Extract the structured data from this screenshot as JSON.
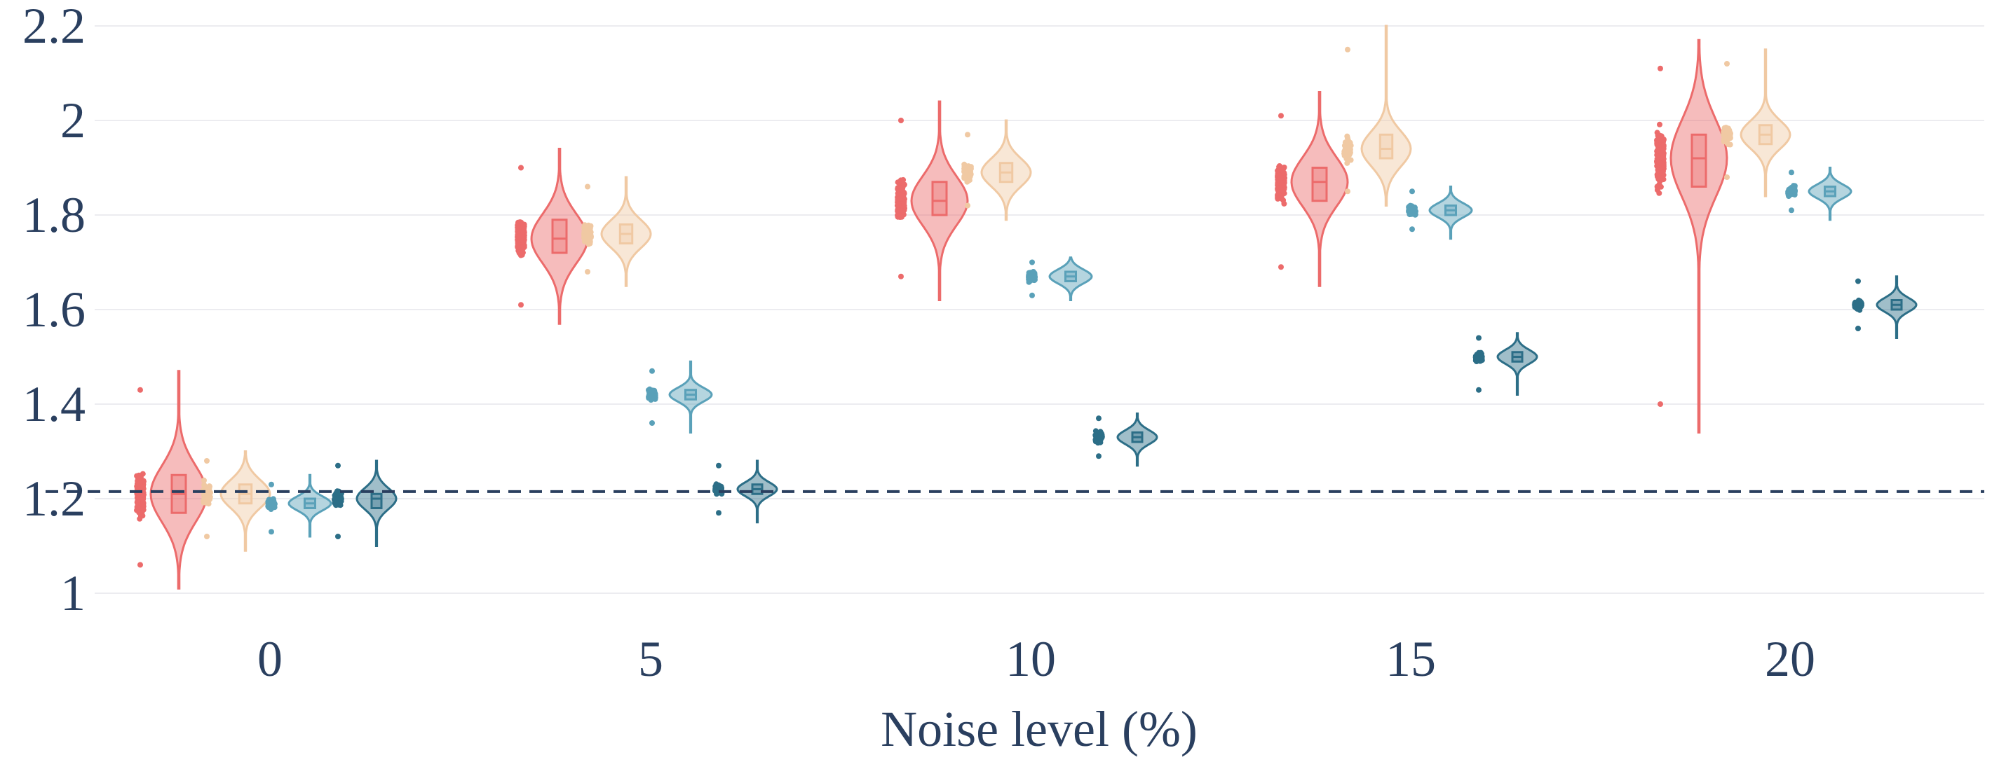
{
  "chart_data": {
    "type": "violin",
    "title": "",
    "xlabel": "Noise level (%)",
    "ylabel": "",
    "categories": [
      "0",
      "5",
      "10",
      "15",
      "20"
    ],
    "y_ticks": [
      "1",
      "1.2",
      "1.4",
      "1.6",
      "1.8",
      "2",
      "2.2"
    ],
    "ylim": [
      0.95,
      2.22
    ],
    "grid": "horizontal",
    "legend": "none",
    "reference_line": {
      "y": 1.215,
      "style": "dashed",
      "color": "#2a3f5f"
    },
    "series": [
      {
        "color": "#ec6b6b",
        "groups": [
          {
            "x": "0",
            "q1": 1.17,
            "median": 1.21,
            "q3": 1.25,
            "min": 1.01,
            "max": 1.47,
            "pts_min": 1.06,
            "pts_max": 1.43,
            "pts_core": [
              1.09,
              1.36
            ]
          },
          {
            "x": "5",
            "q1": 1.72,
            "median": 1.75,
            "q3": 1.79,
            "min": 1.57,
            "max": 1.94,
            "pts_min": 1.61,
            "pts_max": 1.9,
            "pts_core": [
              1.62,
              1.87
            ]
          },
          {
            "x": "10",
            "q1": 1.8,
            "median": 1.83,
            "q3": 1.87,
            "min": 1.62,
            "max": 2.04,
            "pts_min": 1.67,
            "pts_max": 2.0,
            "pts_core": [
              1.7,
              1.96
            ]
          },
          {
            "x": "15",
            "q1": 1.83,
            "median": 1.87,
            "q3": 1.9,
            "min": 1.65,
            "max": 2.06,
            "pts_min": 1.69,
            "pts_max": 2.01,
            "pts_core": [
              1.71,
              2.0
            ]
          },
          {
            "x": "20",
            "q1": 1.86,
            "median": 1.92,
            "q3": 1.97,
            "min": 1.34,
            "max": 2.17,
            "pts_min": 1.4,
            "pts_max": 2.11,
            "pts_core": [
              1.65,
              2.1
            ]
          }
        ]
      },
      {
        "color": "#f0c9a3",
        "groups": [
          {
            "x": "0",
            "q1": 1.19,
            "median": 1.21,
            "q3": 1.23,
            "min": 1.09,
            "max": 1.3,
            "pts_min": 1.12,
            "pts_max": 1.28,
            "pts_core": [
              1.14,
              1.27
            ]
          },
          {
            "x": "5",
            "q1": 1.74,
            "median": 1.76,
            "q3": 1.78,
            "min": 1.65,
            "max": 1.88,
            "pts_min": 1.68,
            "pts_max": 1.86,
            "pts_core": [
              1.7,
              1.84
            ]
          },
          {
            "x": "10",
            "q1": 1.87,
            "median": 1.89,
            "q3": 1.91,
            "min": 1.79,
            "max": 2.0,
            "pts_min": 1.82,
            "pts_max": 1.97,
            "pts_core": [
              1.83,
              1.96
            ]
          },
          {
            "x": "15",
            "q1": 1.92,
            "median": 1.94,
            "q3": 1.97,
            "min": 1.82,
            "max": 2.2,
            "pts_min": 1.85,
            "pts_max": 2.15,
            "pts_core": [
              1.86,
              2.04
            ]
          },
          {
            "x": "20",
            "q1": 1.95,
            "median": 1.97,
            "q3": 1.99,
            "min": 1.84,
            "max": 2.15,
            "pts_min": 1.88,
            "pts_max": 2.12,
            "pts_core": [
              1.89,
              2.07
            ]
          }
        ]
      },
      {
        "color": "#5aa1b9",
        "groups": [
          {
            "x": "0",
            "q1": 1.18,
            "median": 1.19,
            "q3": 1.2,
            "min": 1.12,
            "max": 1.25,
            "pts_min": 1.13,
            "pts_max": 1.23,
            "pts_core": [
              1.15,
              1.22
            ]
          },
          {
            "x": "5",
            "q1": 1.41,
            "median": 1.42,
            "q3": 1.43,
            "min": 1.34,
            "max": 1.49,
            "pts_min": 1.36,
            "pts_max": 1.47,
            "pts_core": [
              1.37,
              1.46
            ]
          },
          {
            "x": "10",
            "q1": 1.66,
            "median": 1.67,
            "q3": 1.68,
            "min": 1.62,
            "max": 1.71,
            "pts_min": 1.63,
            "pts_max": 1.7,
            "pts_core": [
              1.64,
              1.7
            ]
          },
          {
            "x": "15",
            "q1": 1.8,
            "median": 1.81,
            "q3": 1.82,
            "min": 1.75,
            "max": 1.86,
            "pts_min": 1.77,
            "pts_max": 1.85,
            "pts_core": [
              1.78,
              1.84
            ]
          },
          {
            "x": "20",
            "q1": 1.84,
            "median": 1.85,
            "q3": 1.86,
            "min": 1.79,
            "max": 1.9,
            "pts_min": 1.81,
            "pts_max": 1.89,
            "pts_core": [
              1.82,
              1.88
            ]
          }
        ]
      },
      {
        "color": "#2c6e87",
        "groups": [
          {
            "x": "0",
            "q1": 1.18,
            "median": 1.2,
            "q3": 1.21,
            "min": 1.1,
            "max": 1.28,
            "pts_min": 1.12,
            "pts_max": 1.27,
            "pts_core": [
              1.14,
              1.25
            ]
          },
          {
            "x": "5",
            "q1": 1.21,
            "median": 1.22,
            "q3": 1.23,
            "min": 1.15,
            "max": 1.28,
            "pts_min": 1.17,
            "pts_max": 1.27,
            "pts_core": [
              1.18,
              1.26
            ]
          },
          {
            "x": "10",
            "q1": 1.32,
            "median": 1.33,
            "q3": 1.34,
            "min": 1.27,
            "max": 1.38,
            "pts_min": 1.29,
            "pts_max": 1.37,
            "pts_core": [
              1.3,
              1.36
            ]
          },
          {
            "x": "15",
            "q1": 1.49,
            "median": 1.5,
            "q3": 1.51,
            "min": 1.42,
            "max": 1.55,
            "pts_min": 1.43,
            "pts_max": 1.54,
            "pts_core": [
              1.45,
              1.53
            ]
          },
          {
            "x": "20",
            "q1": 1.6,
            "median": 1.61,
            "q3": 1.62,
            "min": 1.54,
            "max": 1.67,
            "pts_min": 1.56,
            "pts_max": 1.66,
            "pts_core": [
              1.57,
              1.65
            ]
          }
        ]
      }
    ]
  }
}
